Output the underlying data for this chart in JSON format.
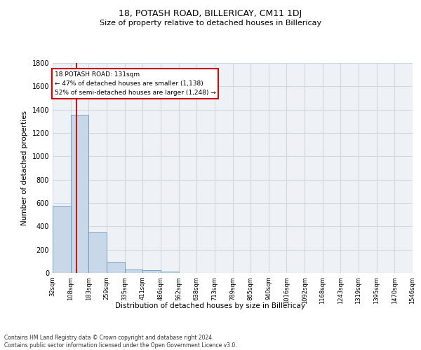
{
  "title1": "18, POTASH ROAD, BILLERICAY, CM11 1DJ",
  "title2": "Size of property relative to detached houses in Billericay",
  "xlabel": "Distribution of detached houses by size in Billericay",
  "ylabel": "Number of detached properties",
  "footnote1": "Contains HM Land Registry data © Crown copyright and database right 2024.",
  "footnote2": "Contains public sector information licensed under the Open Government Licence v3.0.",
  "annotation_title": "18 POTASH ROAD: 131sqm",
  "annotation_line1": "← 47% of detached houses are smaller (1,138)",
  "annotation_line2": "52% of semi-detached houses are larger (1,248) →",
  "bar_edges": [
    32,
    108,
    183,
    259,
    335,
    411,
    486,
    562,
    638,
    713,
    789,
    865,
    940,
    1016,
    1092,
    1168,
    1243,
    1319,
    1395,
    1470,
    1546
  ],
  "bar_heights": [
    575,
    1355,
    350,
    95,
    30,
    25,
    15,
    0,
    0,
    0,
    0,
    0,
    0,
    0,
    0,
    0,
    0,
    0,
    0,
    0
  ],
  "bar_color": "#c8d8e8",
  "bar_edge_color": "#5a8ab0",
  "grid_color": "#d0d8e0",
  "bg_color": "#eef2f7",
  "vline_x": 131,
  "vline_color": "#cc0000",
  "annotation_box_color": "#ffffff",
  "annotation_box_edge": "#cc0000",
  "ylim": [
    0,
    1800
  ],
  "yticks": [
    0,
    200,
    400,
    600,
    800,
    1000,
    1200,
    1400,
    1600,
    1800
  ],
  "tick_labels": [
    "32sqm",
    "108sqm",
    "183sqm",
    "259sqm",
    "335sqm",
    "411sqm",
    "486sqm",
    "562sqm",
    "638sqm",
    "713sqm",
    "789sqm",
    "865sqm",
    "940sqm",
    "1016sqm",
    "1092sqm",
    "1168sqm",
    "1243sqm",
    "1319sqm",
    "1395sqm",
    "1470sqm",
    "1546sqm"
  ],
  "title1_fontsize": 9,
  "title2_fontsize": 8,
  "xlabel_fontsize": 7.5,
  "ylabel_fontsize": 7.5,
  "footnote_fontsize": 5.5,
  "tick_fontsize": 6,
  "ytick_fontsize": 7
}
